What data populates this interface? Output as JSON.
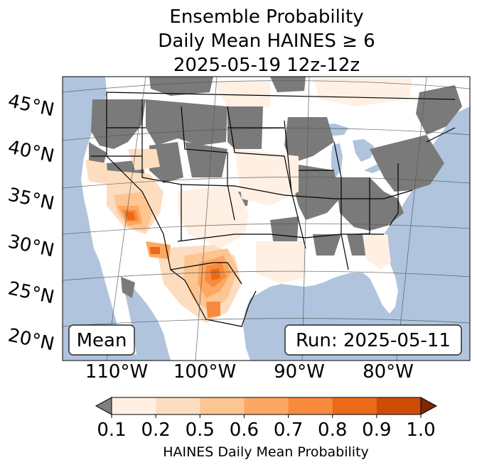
{
  "title": {
    "line1": "Ensemble Probability",
    "line2": "Daily Mean HAINES ≥ 6",
    "line3": "2025-05-19 12z-12z"
  },
  "map": {
    "latitude_labels": [
      "45°N",
      "40°N",
      "35°N",
      "30°N",
      "25°N",
      "20°N"
    ],
    "longitude_labels": [
      "110°W",
      "100°W",
      "90°W",
      "80°W"
    ],
    "colors": {
      "ocean": "#b0c4de",
      "land": "#ffffff",
      "masked": "#7a7a7a",
      "borders": "#000000",
      "gridlines": "#555555"
    },
    "left_box": "Mean",
    "right_box": "Run: 2025-05-11"
  },
  "colorbar": {
    "label": "HAINES Daily Mean Probability",
    "ticks": [
      "0.1",
      "0.2",
      "0.5",
      "0.6",
      "0.7",
      "0.8",
      "0.9",
      "1.0"
    ],
    "bins": [
      {
        "from": 0.1,
        "to": 0.2,
        "color": "#fff0e3"
      },
      {
        "from": 0.2,
        "to": 0.5,
        "color": "#fdddc0"
      },
      {
        "from": 0.5,
        "to": 0.6,
        "color": "#fdc592"
      },
      {
        "from": 0.6,
        "to": 0.7,
        "color": "#fda862"
      },
      {
        "from": 0.7,
        "to": 0.8,
        "color": "#f88a3e"
      },
      {
        "from": 0.8,
        "to": 0.9,
        "color": "#ea6a1a"
      },
      {
        "from": 0.9,
        "to": 1.0,
        "color": "#cf4c05"
      }
    ],
    "under_color": "#808080",
    "over_color": "#7f2704"
  }
}
